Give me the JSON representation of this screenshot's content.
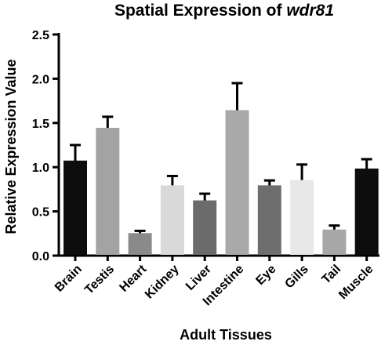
{
  "chart_data": {
    "type": "bar",
    "title": {
      "prefix": "Spatial Expression of ",
      "gene": "wdr81"
    },
    "xlabel": "Adult Tissues",
    "ylabel": "Relative Expression Value",
    "ylim": [
      0,
      2.5
    ],
    "yticks": [
      "0.0",
      "0.5",
      "1.0",
      "1.5",
      "2.0",
      "2.5"
    ],
    "categories": [
      "Brain",
      "Testis",
      "Heart",
      "Kidney",
      "Liver",
      "Intestine",
      "Eye",
      "Gills",
      "Tail",
      "Muscle"
    ],
    "values": [
      1.07,
      1.44,
      0.25,
      0.79,
      0.62,
      1.64,
      0.79,
      0.85,
      0.29,
      0.98
    ],
    "errors": [
      0.18,
      0.13,
      0.03,
      0.11,
      0.08,
      0.31,
      0.06,
      0.18,
      0.05,
      0.11
    ],
    "colors": [
      "#0d0d0d",
      "#a3a3a3",
      "#8a8a8a",
      "#d9d9d9",
      "#6b6b6b",
      "#a9a9a9",
      "#6e6e6e",
      "#e8e8e8",
      "#a7a7a7",
      "#0d0d0d"
    ],
    "grid": false,
    "legend": "none"
  }
}
